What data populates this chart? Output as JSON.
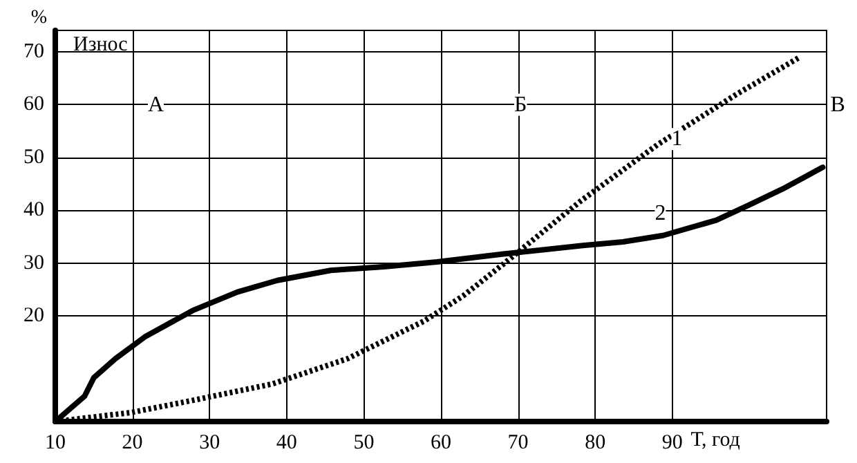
{
  "chart_data": {
    "type": "line",
    "title": "Износ",
    "ylabel": "%",
    "xlabel": "Т, год",
    "xlim": [
      10,
      110
    ],
    "xticks": [
      10,
      20,
      30,
      40,
      50,
      60,
      70,
      80,
      90
    ],
    "ylim": [
      0,
      74
    ],
    "yticks": [
      20,
      30,
      40,
      50,
      60,
      70
    ],
    "grid": true,
    "marker": "none",
    "series": [
      {
        "name": "1",
        "color": "#000000",
        "line_style": "dotted",
        "x": [
          10,
          19.8,
          27.8,
          38.1,
          47.9,
          57.8,
          62.9,
          68.1,
          78.1,
          88.1,
          98.3,
          106.6
        ],
        "values": [
          0,
          1.7,
          4.0,
          7.1,
          11.9,
          19.0,
          23.8,
          29.8,
          41.7,
          52.4,
          61.9,
          69.0
        ]
      },
      {
        "name": "2",
        "color": "#000000",
        "line_style": "solid",
        "x": [
          10,
          13.8,
          15.0,
          17.8,
          21.6,
          27.8,
          33.6,
          38.8,
          45.7,
          52.6,
          59.5,
          68.1,
          78.4,
          83.6,
          88.8,
          95.7,
          100,
          104.3,
          109.5
        ],
        "values": [
          0,
          4.8,
          8.3,
          11.9,
          16.0,
          21.0,
          24.5,
          26.7,
          28.6,
          29.3,
          30.2,
          31.7,
          33.3,
          34.0,
          35.2,
          38.1,
          41.0,
          44.0,
          48.1
        ]
      }
    ],
    "annotations": [
      "А",
      "Б",
      "В"
    ]
  }
}
